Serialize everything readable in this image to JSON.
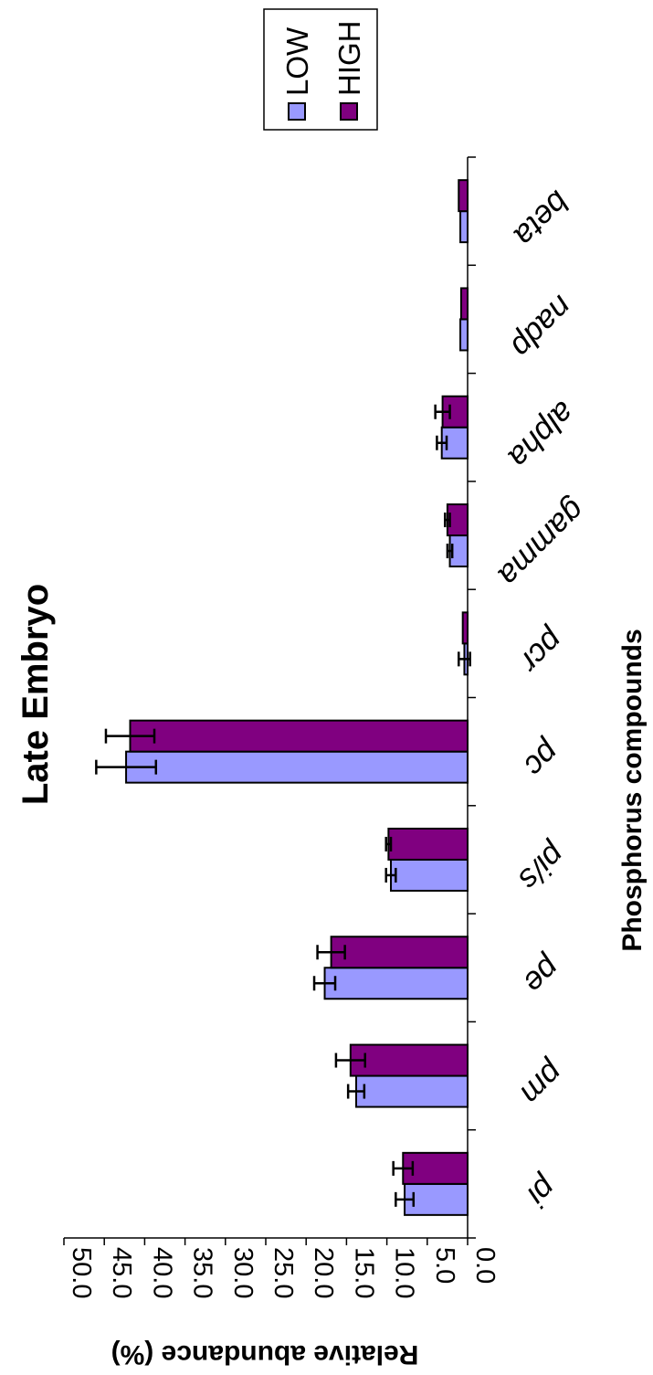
{
  "chart_data": {
    "type": "bar",
    "title": "Late Embryo",
    "xlabel": "Phosphorus compounds",
    "ylabel": "Relative abundance (%)",
    "categories": [
      "pi",
      "pm",
      "pe",
      "pi/s",
      "pc",
      "pcr",
      "gamma",
      "alpha",
      "nadp",
      "beta"
    ],
    "yticks": [
      "0.0",
      "5.0",
      "10.0",
      "15.0",
      "20.0",
      "25.0",
      "30.0",
      "35.0",
      "40.0",
      "45.0",
      "50.0"
    ],
    "ylim": [
      0,
      50
    ],
    "series": [
      {
        "name": "LOW",
        "color": "#9999ff",
        "values": [
          7.8,
          13.8,
          17.7,
          9.5,
          42.3,
          0.4,
          2.2,
          3.2,
          0.9,
          0.9
        ],
        "errors": [
          1.1,
          1.0,
          1.3,
          0.6,
          3.7,
          0.7,
          0.3,
          0.6,
          0.0,
          0.0
        ]
      },
      {
        "name": "HIGH",
        "color": "#800080",
        "values": [
          8.0,
          14.5,
          16.9,
          9.8,
          41.8,
          0.6,
          2.5,
          3.1,
          0.8,
          1.1
        ],
        "errors": [
          1.2,
          1.8,
          1.7,
          0.3,
          3.0,
          0.0,
          0.3,
          0.9,
          0.0,
          0.0
        ]
      }
    ],
    "legend_position": "top-right",
    "grid": false
  }
}
